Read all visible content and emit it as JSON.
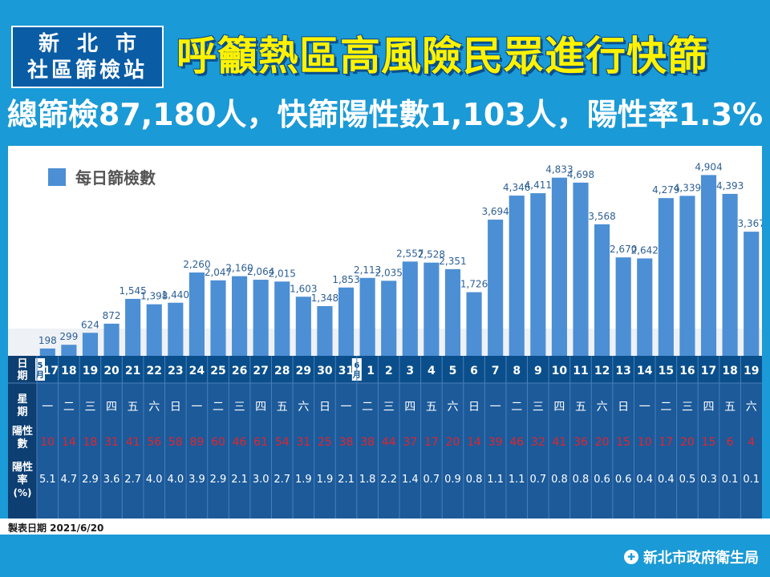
{
  "header": {
    "badge_line1": "新北市",
    "badge_line2": "社區篩檢站",
    "title": "呼籲熱區高風險民眾進行快篩",
    "summary": "總篩檢87,180人，快篩陽性數1,103人，陽性率1.3%"
  },
  "table_labels": {
    "date": "日期",
    "weekday": "星期",
    "positives": "陽性數",
    "rate": "陽性率(%)",
    "month_may": "5月",
    "month_june": "6月"
  },
  "footer": {
    "made_date": "製表日期 2021/6/20",
    "org": "新北市政府衛生局"
  },
  "colors": {
    "bar": "#4c8fd4",
    "bar_label": "#2d5f94",
    "table_header": "#0a4f8c",
    "table_body": "#1c5a9a",
    "positive_text": "#e5232a",
    "background": "#1a9ad6",
    "title_yellow": "#fff200"
  },
  "chart_data": {
    "type": "bar",
    "title": "",
    "xlabel": "",
    "ylabel": "",
    "legend": "top-left",
    "grid": false,
    "ylim": [
      0,
      5000
    ],
    "series": [
      {
        "name": "每日篩檢數",
        "values": [
          198,
          299,
          624,
          872,
          1545,
          1398,
          1440,
          2260,
          2047,
          2160,
          2064,
          2015,
          1603,
          1348,
          1853,
          2113,
          2035,
          2557,
          2528,
          2351,
          1726,
          3694,
          4346,
          4411,
          4833,
          4698,
          3568,
          2670,
          2642,
          4279,
          4339,
          4904,
          4393,
          3367
        ],
        "labels": [
          "198",
          "299",
          "624",
          "872",
          "1,545",
          "1,398",
          "1,440",
          "2,260",
          "2,047",
          "2,160",
          "2,064",
          "2,015",
          "1,603",
          "1,348",
          "1,853",
          "2,113",
          "2,035",
          "2,557",
          "2,528",
          "2,351",
          "1,726",
          "3,694",
          "4,346",
          "4,411",
          "4,833",
          "4,698",
          "3,568",
          "2,670",
          "2,642",
          "4,279",
          "4,339",
          "4,904",
          "4,393",
          "3,367"
        ]
      }
    ],
    "categories": [
      "17",
      "18",
      "19",
      "20",
      "21",
      "22",
      "23",
      "24",
      "25",
      "26",
      "27",
      "28",
      "29",
      "30",
      "31",
      "1",
      "2",
      "3",
      "4",
      "5",
      "6",
      "7",
      "8",
      "9",
      "10",
      "11",
      "12",
      "13",
      "14",
      "15",
      "16",
      "17",
      "18",
      "19"
    ],
    "weekdays": [
      "一",
      "二",
      "三",
      "四",
      "五",
      "六",
      "日",
      "一",
      "二",
      "三",
      "四",
      "五",
      "六",
      "日",
      "一",
      "二",
      "三",
      "四",
      "五",
      "六",
      "日",
      "一",
      "二",
      "三",
      "四",
      "五",
      "六",
      "日",
      "一",
      "二",
      "三",
      "四",
      "五",
      "六"
    ],
    "positives": [
      10,
      14,
      18,
      31,
      41,
      56,
      58,
      89,
      60,
      46,
      61,
      54,
      31,
      25,
      38,
      38,
      44,
      37,
      17,
      20,
      14,
      39,
      46,
      32,
      41,
      36,
      20,
      15,
      10,
      17,
      20,
      15,
      6,
      4
    ],
    "rates": [
      "5.1",
      "4.7",
      "2.9",
      "3.6",
      "2.7",
      "4.0",
      "4.0",
      "3.9",
      "2.9",
      "2.1",
      "3.0",
      "2.7",
      "1.9",
      "1.9",
      "2.1",
      "1.8",
      "2.2",
      "1.4",
      "0.7",
      "0.9",
      "0.8",
      "1.1",
      "1.1",
      "0.7",
      "0.8",
      "0.8",
      "0.6",
      "0.6",
      "0.4",
      "0.4",
      "0.5",
      "0.3",
      "0.1",
      "0.1"
    ]
  }
}
